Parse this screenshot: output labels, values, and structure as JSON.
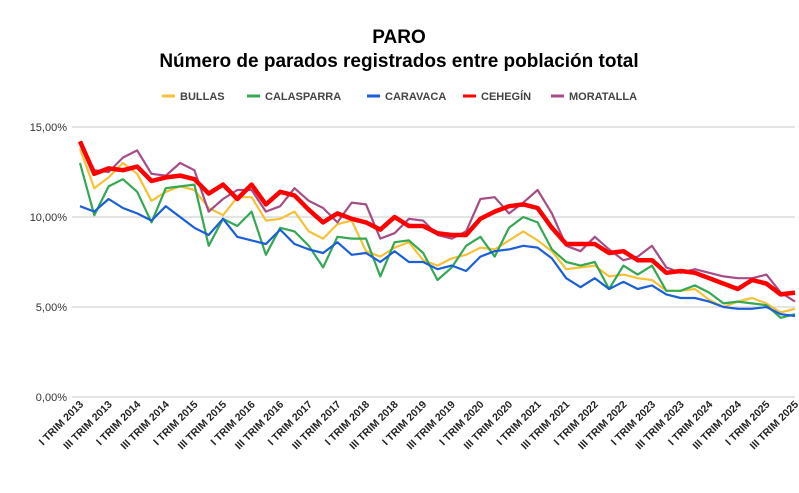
{
  "chart_data": {
    "type": "line",
    "title": "PARO",
    "subtitle": "Número de parados registrados entre población total",
    "xlabel": "",
    "ylabel": "",
    "ylim": [
      0,
      15
    ],
    "y_ticks": [
      {
        "value": 0,
        "label": "0,00%"
      },
      {
        "value": 5,
        "label": "5,00%"
      },
      {
        "value": 10,
        "label": "10,00%"
      },
      {
        "value": 15,
        "label": "15,00%"
      }
    ],
    "grid": true,
    "legend_position": "top",
    "x_tick_labels": [
      "I TRIM 2013",
      "III TRIM 2013",
      "I TRIM 2014",
      "III TRIM 2014",
      "I TRIM 2015",
      "III TRIM 2015",
      "I TRIM 2016",
      "III TRIM 2016",
      "I TRIM 2017",
      "III TRIM 2017",
      "I TRIM 2018",
      "III TRIM 2018",
      "I TRIM 2019",
      "III TRIM 2019",
      "I TRIM 2020",
      "III TRIM 2020",
      "I TRIM 2021",
      "III TRIM 2021",
      "I TRIM 2022",
      "III TRIM 2022",
      "I TRIM 2023",
      "III TRIM 2023",
      "I TRIM 2024",
      "III TRIM 2024",
      "I TRIM 2025",
      "III TRIM 2025"
    ],
    "series": [
      {
        "name": "BULLAS",
        "color": "#f6c136",
        "width": 2.2,
        "values": [
          13.8,
          11.6,
          12.2,
          13.0,
          12.4,
          10.9,
          11.4,
          11.7,
          11.5,
          10.5,
          10.1,
          11.1,
          11.1,
          9.8,
          9.9,
          10.3,
          9.2,
          8.8,
          9.6,
          9.8,
          8.1,
          7.8,
          8.3,
          8.6,
          7.6,
          7.3,
          7.7,
          7.9,
          8.3,
          8.2,
          8.7,
          9.2,
          8.7,
          8.1,
          7.1,
          7.2,
          7.3,
          6.7,
          6.8,
          6.6,
          6.5,
          5.9,
          5.9,
          6.0,
          5.4,
          5.0,
          5.3,
          5.5,
          5.2,
          4.7,
          4.9
        ]
      },
      {
        "name": "CALASPARRA",
        "color": "#34a853",
        "width": 2.2,
        "values": [
          13.0,
          10.1,
          11.7,
          12.1,
          11.4,
          9.7,
          11.6,
          11.7,
          11.8,
          8.4,
          9.9,
          9.5,
          10.3,
          7.9,
          9.4,
          9.2,
          8.4,
          7.2,
          8.9,
          8.8,
          8.8,
          6.7,
          8.6,
          8.7,
          8.0,
          6.5,
          7.2,
          8.4,
          8.9,
          7.8,
          9.4,
          10.0,
          9.7,
          8.2,
          7.5,
          7.3,
          7.5,
          6.0,
          7.3,
          6.8,
          7.3,
          5.9,
          5.9,
          6.2,
          5.8,
          5.2,
          5.3,
          5.2,
          5.1,
          4.4,
          4.6
        ]
      },
      {
        "name": "CARAVACA",
        "color": "#1a5fd6",
        "width": 2.2,
        "values": [
          10.6,
          10.3,
          11.0,
          10.5,
          10.2,
          9.8,
          10.6,
          10.0,
          9.4,
          9.0,
          9.9,
          8.9,
          8.7,
          8.5,
          9.3,
          8.5,
          8.2,
          8.0,
          8.6,
          7.9,
          8.0,
          7.5,
          8.1,
          7.5,
          7.5,
          7.1,
          7.3,
          7.0,
          7.8,
          8.1,
          8.2,
          8.4,
          8.3,
          7.7,
          6.6,
          6.1,
          6.6,
          6.0,
          6.4,
          6.0,
          6.2,
          5.7,
          5.5,
          5.5,
          5.3,
          5.0,
          4.9,
          4.9,
          5.0,
          4.6,
          4.5
        ]
      },
      {
        "name": "CEHEGÍN",
        "color": "#ff0000",
        "width": 4.5,
        "values": [
          14.2,
          12.4,
          12.7,
          12.6,
          12.8,
          12.0,
          12.2,
          12.3,
          12.1,
          11.3,
          11.8,
          11.0,
          11.8,
          10.7,
          11.4,
          11.2,
          10.4,
          9.7,
          10.2,
          9.9,
          9.7,
          9.3,
          10.0,
          9.5,
          9.5,
          9.1,
          9.0,
          9.0,
          9.9,
          10.3,
          10.6,
          10.7,
          10.5,
          9.4,
          8.5,
          8.5,
          8.5,
          8.0,
          8.1,
          7.6,
          7.6,
          6.9,
          7.0,
          6.9,
          6.6,
          6.3,
          6.0,
          6.5,
          6.3,
          5.7,
          5.8
        ]
      },
      {
        "name": "MORATALLA",
        "color": "#a64d86",
        "width": 2.2,
        "values": [
          14.2,
          12.6,
          12.5,
          13.3,
          13.7,
          12.4,
          12.3,
          13.0,
          12.6,
          10.3,
          11.0,
          11.5,
          11.5,
          10.3,
          10.6,
          11.6,
          10.9,
          10.5,
          9.7,
          10.8,
          10.7,
          8.8,
          9.1,
          9.9,
          9.8,
          9.0,
          8.8,
          9.2,
          11.0,
          11.1,
          10.2,
          10.8,
          11.5,
          10.2,
          8.4,
          8.1,
          8.9,
          8.2,
          7.6,
          7.8,
          8.4,
          7.2,
          6.9,
          7.1,
          6.9,
          6.7,
          6.6,
          6.6,
          6.8,
          5.8,
          5.3
        ]
      }
    ]
  }
}
